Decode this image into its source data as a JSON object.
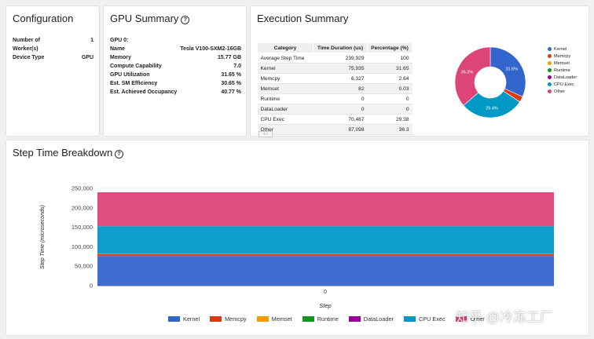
{
  "configuration": {
    "title": "Configuration",
    "rows": [
      {
        "label": "Number of",
        "value": "1"
      },
      {
        "label": "Worker(s)",
        "value": ""
      },
      {
        "label": "Device Type",
        "value": "GPU"
      }
    ]
  },
  "gpu_summary": {
    "title": "GPU Summary",
    "help_icon": "?",
    "rows": [
      {
        "label": "GPU 0:",
        "value": ""
      },
      {
        "label": "Name",
        "value": "Tesla V100-SXM2-16GB"
      },
      {
        "label": "Memory",
        "value": "15.77 GB"
      },
      {
        "label": "Compute Capability",
        "value": "7.0"
      },
      {
        "label": "GPU Utilization",
        "value": "31.65 %"
      },
      {
        "label": "Est. SM Efficiency",
        "value": "30.65 %"
      },
      {
        "label": "Est. Achieved Occupancy",
        "value": "40.77 %"
      }
    ]
  },
  "execution_summary": {
    "title": "Execution Summary",
    "columns": [
      "Category",
      "Time Duration (us)",
      "Percentage (%)"
    ],
    "rows": [
      {
        "category": "Average Step Time",
        "duration": "239,929",
        "pct": "100"
      },
      {
        "category": "Kernel",
        "duration": "75,935",
        "pct": "31.65"
      },
      {
        "category": "Memcpy",
        "duration": "6,327",
        "pct": "2.64"
      },
      {
        "category": "Memset",
        "duration": "82",
        "pct": "0.03"
      },
      {
        "category": "Runtime",
        "duration": "0",
        "pct": "0"
      },
      {
        "category": "DataLoader",
        "duration": "0",
        "pct": "0"
      },
      {
        "category": "CPU Exec",
        "duration": "70,467",
        "pct": "29.38"
      },
      {
        "category": "Other",
        "duration": "87,098",
        "pct": "36.3"
      }
    ],
    "pager": "« ‹"
  },
  "step_time": {
    "title": "Step Time Breakdown",
    "help_icon": "?"
  },
  "colors": {
    "Kernel": "#3366cc",
    "Memcpy": "#dc3912",
    "Memset": "#ff9900",
    "Runtime": "#109618",
    "DataLoader": "#990099",
    "CPU Exec": "#0099c6",
    "Other": "#dd4477"
  },
  "chart_data": [
    {
      "type": "pie",
      "title": "",
      "categories": [
        "Kernel",
        "Memcpy",
        "Memset",
        "Runtime",
        "DataLoader",
        "CPU Exec",
        "Other"
      ],
      "values": [
        31.65,
        2.64,
        0.03,
        0,
        0,
        29.38,
        36.3
      ],
      "slice_labels": {
        "Kernel": "31.6%",
        "CPU Exec": "29.4%",
        "Other": "36.3%"
      },
      "donut": true,
      "legend": "right"
    },
    {
      "type": "area",
      "title": "",
      "x": [
        "0"
      ],
      "xlabel": "Step",
      "ylabel": "Step Time (microseconds)",
      "ylim": [
        0,
        250000
      ],
      "yticks": [
        "0",
        "50,000",
        "100,000",
        "150,000",
        "200,000",
        "250,000"
      ],
      "stacked": true,
      "series": [
        {
          "name": "Kernel",
          "values": [
            75935
          ]
        },
        {
          "name": "Memcpy",
          "values": [
            6327
          ]
        },
        {
          "name": "Memset",
          "values": [
            82
          ]
        },
        {
          "name": "Runtime",
          "values": [
            0
          ]
        },
        {
          "name": "DataLoader",
          "values": [
            0
          ]
        },
        {
          "name": "CPU Exec",
          "values": [
            70467
          ]
        },
        {
          "name": "Other",
          "values": [
            87098
          ]
        }
      ],
      "legend": "bottom"
    }
  ],
  "watermark": "知乎 @冷冻工厂"
}
